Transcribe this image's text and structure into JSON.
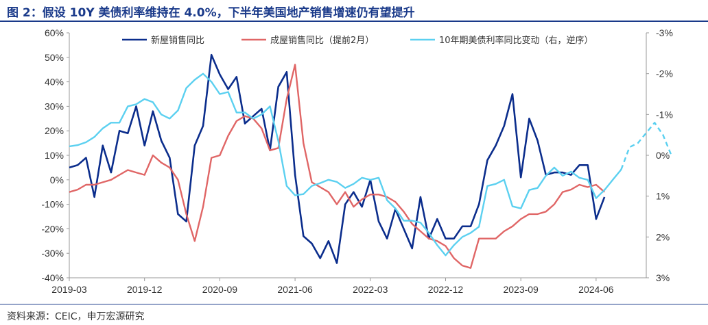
{
  "header": {
    "title": "图 2：假设 10Y 美债利率维持在 4.0%，下半年美国地产销售增速仍有望提升"
  },
  "footer": {
    "source": "资料来源：CEIC，申万宏源研究"
  },
  "chart_data": {
    "type": "line",
    "title": "",
    "x_tick_labels": [
      "2019-03",
      "2019-12",
      "2020-09",
      "2021-06",
      "2022-03",
      "2022-12",
      "2023-09",
      "2024-06"
    ],
    "x_range": [
      "2019-03",
      "2024-12"
    ],
    "y_left": {
      "range": [
        -40,
        60
      ],
      "unit": "%",
      "ticks": [
        "60%",
        "50%",
        "40%",
        "30%",
        "20%",
        "10%",
        "0%",
        "-10%",
        "-20%",
        "-30%",
        "-40%"
      ]
    },
    "y_right": {
      "range": [
        -3,
        3
      ],
      "inverted": true,
      "unit": "%",
      "ticks": [
        "-3%",
        "-2%",
        "-1%",
        "0%",
        "1%",
        "2%",
        "3%"
      ]
    },
    "legend_position": "top",
    "grid": false,
    "series": [
      {
        "name": "新屋销售同比",
        "color": "#0b2d8c",
        "axis": "left",
        "values": [
          5,
          6,
          9,
          -7,
          14,
          3,
          20,
          19,
          30,
          14,
          28,
          16,
          9,
          -14,
          -17,
          14,
          22,
          51,
          43,
          37,
          42,
          23,
          26,
          29,
          12,
          38,
          44,
          2,
          -23,
          -26,
          -32,
          -25,
          -34,
          -10,
          -5,
          -11,
          0,
          -17,
          -24,
          -12,
          -20,
          -28,
          -7,
          -24,
          -16,
          -24,
          -24,
          -19,
          -19,
          -10,
          8,
          14,
          22,
          35,
          1,
          25,
          16,
          2,
          3,
          3,
          2,
          6,
          6,
          -16,
          -7
        ]
      },
      {
        "name": "成屋销售同比（提前2月）",
        "color": "#e06666",
        "axis": "left",
        "values": [
          -5,
          -4,
          -2,
          -2,
          -1,
          0,
          2,
          4,
          3,
          2,
          10,
          7,
          5,
          0,
          -14,
          -25,
          -11,
          9,
          10,
          18,
          24,
          26,
          25,
          21,
          12,
          13,
          33,
          47,
          15,
          -1,
          -3,
          -5,
          -10,
          -5,
          -11,
          -8,
          -6,
          -6,
          -7,
          -9,
          -13,
          -18,
          -21,
          -24,
          -25,
          -27,
          -32,
          -35,
          -36,
          -24,
          -24,
          -24,
          -21,
          -19,
          -16,
          -14,
          -14,
          -13,
          -10,
          -5,
          -4,
          -2,
          -3,
          -2,
          -5
        ]
      },
      {
        "name": "10年期美债利率同比变动（右，逆序）",
        "color": "#5bd0f0",
        "axis": "right",
        "values": [
          -0.22,
          -0.25,
          -0.32,
          -0.45,
          -0.66,
          -0.8,
          -0.8,
          -1.2,
          -1.25,
          -1.38,
          -1.3,
          -1.0,
          -0.9,
          -1.1,
          -1.65,
          -1.85,
          -2.0,
          -1.8,
          -1.5,
          -1.55,
          -1.05,
          -1.05,
          -0.9,
          -1.0,
          -1.2,
          -0.35,
          0.75,
          0.98,
          0.95,
          0.75,
          0.68,
          0.6,
          0.65,
          0.8,
          0.7,
          0.55,
          0.6,
          0.55,
          1.1,
          1.3,
          1.6,
          1.6,
          1.65,
          1.9,
          2.2,
          2.45,
          2.2,
          2.0,
          1.9,
          1.75,
          0.75,
          0.7,
          0.6,
          1.25,
          1.3,
          0.85,
          0.8,
          0.5,
          0.3,
          0.5,
          0.4,
          0.55,
          0.6,
          1.05,
          0.85,
          0.6,
          0.35
        ]
      },
      {
        "name": "10年期美债利率同比变动（右，逆序）预测",
        "color": "#5bd0f0",
        "axis": "right",
        "dashed": true,
        "show_in_legend": false,
        "values": [
          0.35,
          -0.2,
          -0.3,
          -0.55,
          -0.8,
          -0.5,
          0.0
        ]
      }
    ]
  }
}
